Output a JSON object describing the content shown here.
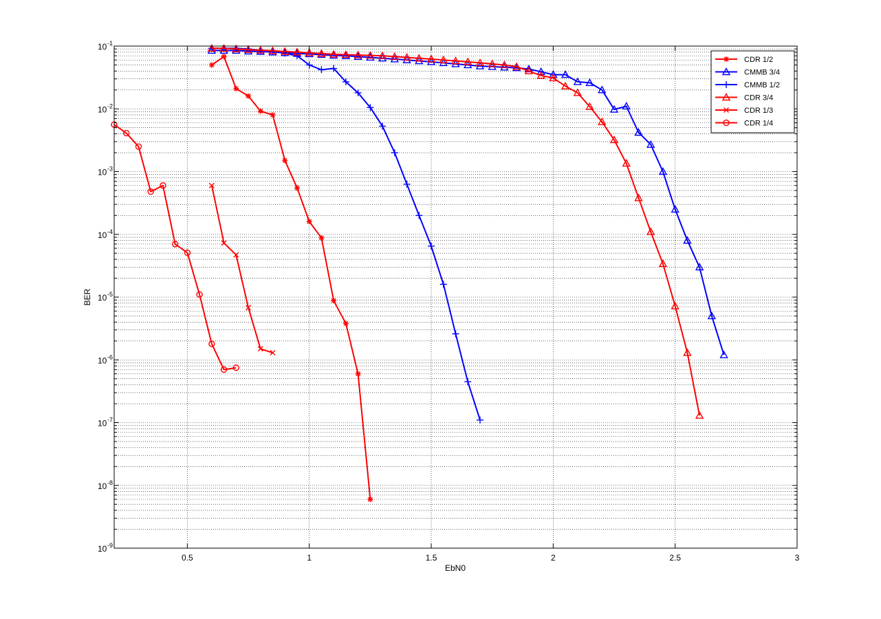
{
  "chart_data": {
    "type": "line",
    "title": "",
    "xlabel": "EbN0",
    "ylabel": "BER",
    "xlim": [
      0.2,
      3
    ],
    "ylim": [
      1e-09,
      0.1
    ],
    "yscale": "log",
    "grid": true,
    "legend_position": "top-right",
    "x_ticks": [
      0.5,
      1,
      1.5,
      2,
      2.5,
      3
    ],
    "x_tick_labels": [
      "0.5",
      "1",
      "1.5",
      "2",
      "2.5",
      "3"
    ],
    "y_ticks": [
      -9,
      -8,
      -7,
      -6,
      -5,
      -4,
      -3,
      -2,
      -1
    ],
    "y_tick_labels": [
      "10",
      "10",
      "10",
      "10",
      "10",
      "10",
      "10",
      "10",
      "10"
    ],
    "y_tick_exponents": [
      "-9",
      "-8",
      "-7",
      "-6",
      "-5",
      "-4",
      "-3",
      "-2",
      "-1"
    ],
    "series": [
      {
        "name": "CDR  1/2",
        "color": "#ff0000",
        "marker": "star",
        "line_width": 2,
        "x": [
          0.6,
          0.65,
          0.7,
          0.75,
          0.8,
          0.85,
          0.9,
          0.95,
          1.0,
          1.05,
          1.1,
          1.15,
          1.2,
          1.25
        ],
        "y": [
          0.05,
          0.068,
          0.021,
          0.016,
          0.0092,
          0.008,
          0.0015,
          0.00055,
          0.00016,
          8.8e-05,
          8.8e-06,
          3.8e-06,
          6e-07,
          6e-09
        ]
      },
      {
        "name": "CMMB 3/4",
        "color": "#0000ff",
        "marker": "triangle",
        "line_width": 2,
        "x": [
          0.6,
          0.65,
          0.7,
          0.75,
          0.8,
          0.85,
          0.9,
          0.95,
          1.0,
          1.05,
          1.1,
          1.15,
          1.2,
          1.25,
          1.3,
          1.35,
          1.4,
          1.45,
          1.5,
          1.55,
          1.6,
          1.65,
          1.7,
          1.75,
          1.8,
          1.85,
          1.9,
          1.95,
          2.0,
          2.05,
          2.1,
          2.15,
          2.2,
          2.25,
          2.3,
          2.35,
          2.4,
          2.45,
          2.5,
          2.55,
          2.6,
          2.65,
          2.7
        ],
        "y": [
          0.085,
          0.085,
          0.085,
          0.083,
          0.082,
          0.08,
          0.078,
          0.076,
          0.075,
          0.073,
          0.071,
          0.07,
          0.068,
          0.066,
          0.064,
          0.062,
          0.06,
          0.058,
          0.056,
          0.054,
          0.052,
          0.05,
          0.048,
          0.047,
          0.046,
          0.045,
          0.043,
          0.039,
          0.035,
          0.035,
          0.027,
          0.026,
          0.02,
          0.0098,
          0.011,
          0.0042,
          0.0027,
          0.001,
          0.00025,
          8e-05,
          3e-05,
          5e-06,
          1.2e-06
        ]
      },
      {
        "name": "CMMB 1/2",
        "color": "#0000ff",
        "marker": "plus",
        "line_width": 2,
        "x": [
          0.6,
          0.65,
          0.7,
          0.75,
          0.8,
          0.85,
          0.9,
          0.95,
          1.0,
          1.05,
          1.1,
          1.15,
          1.2,
          1.25,
          1.3,
          1.35,
          1.4,
          1.45,
          1.5,
          1.55,
          1.6,
          1.65,
          1.7
        ],
        "y": [
          0.092,
          0.092,
          0.092,
          0.09,
          0.085,
          0.082,
          0.077,
          0.07,
          0.05,
          0.042,
          0.044,
          0.027,
          0.018,
          0.0105,
          0.0053,
          0.002,
          0.00063,
          0.0002,
          6.5e-05,
          1.6e-05,
          2.6e-06,
          4.5e-07,
          1.1e-07
        ]
      },
      {
        "name": "CDR 3/4",
        "color": "#ff0000",
        "marker": "triangle",
        "line_width": 2,
        "x": [
          0.6,
          0.65,
          0.7,
          0.75,
          0.8,
          0.85,
          0.9,
          0.95,
          1.0,
          1.05,
          1.1,
          1.15,
          1.2,
          1.25,
          1.3,
          1.35,
          1.4,
          1.45,
          1.5,
          1.55,
          1.6,
          1.65,
          1.7,
          1.75,
          1.8,
          1.85,
          1.9,
          1.95,
          2.0,
          2.05,
          2.1,
          2.15,
          2.2,
          2.25,
          2.3,
          2.35,
          2.4,
          2.45,
          2.5,
          2.55,
          2.6
        ],
        "y": [
          0.092,
          0.092,
          0.09,
          0.088,
          0.086,
          0.084,
          0.082,
          0.08,
          0.078,
          0.076,
          0.074,
          0.073,
          0.072,
          0.071,
          0.07,
          0.068,
          0.066,
          0.064,
          0.062,
          0.06,
          0.058,
          0.056,
          0.054,
          0.052,
          0.05,
          0.047,
          0.04,
          0.034,
          0.031,
          0.023,
          0.018,
          0.0108,
          0.0062,
          0.0032,
          0.00135,
          0.00038,
          0.00011,
          3.4e-05,
          7.2e-06,
          1.3e-06,
          1.3e-07
        ]
      },
      {
        "name": "CDR 1/3",
        "color": "#ff0000",
        "marker": "x",
        "line_width": 2,
        "x": [
          0.6,
          0.65,
          0.7,
          0.75,
          0.8,
          0.85
        ],
        "y": [
          0.0006,
          7.3e-05,
          4.7e-05,
          6.8e-06,
          1.5e-06,
          1.3e-06
        ]
      },
      {
        "name": "CDR 1/4",
        "color": "#ff0000",
        "marker": "circle",
        "line_width": 2,
        "x": [
          0.2,
          0.25,
          0.3,
          0.35,
          0.4,
          0.45,
          0.5,
          0.55,
          0.6,
          0.65,
          0.7
        ],
        "y": [
          0.0056,
          0.0041,
          0.0025,
          0.00048,
          0.0006,
          7e-05,
          5.1e-05,
          1.1e-05,
          1.8e-06,
          7e-07,
          7.5e-07
        ]
      }
    ]
  }
}
